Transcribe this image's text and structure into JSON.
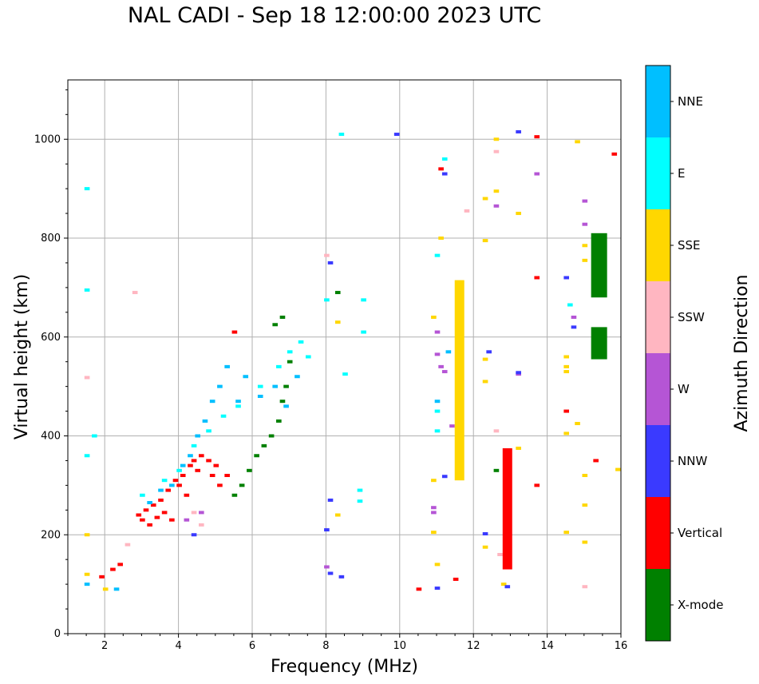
{
  "chart_data": {
    "type": "scatter",
    "title": "NAL CADI - Sep 18 12:00:00 2023 UTC",
    "xlabel": "Frequency (MHz)",
    "ylabel": "Virtual height (km)",
    "xlim": [
      1,
      16
    ],
    "ylim": [
      0,
      1120
    ],
    "xticks": [
      2,
      4,
      6,
      8,
      10,
      12,
      14,
      16
    ],
    "yticks": [
      0,
      200,
      400,
      600,
      800,
      1000
    ],
    "grid": true,
    "colorbar": {
      "label": "Azimuth Direction",
      "categories": [
        {
          "name": "X-mode",
          "color": "#008000"
        },
        {
          "name": "Vertical",
          "color": "#ff0000"
        },
        {
          "name": "NNW",
          "color": "#3a3aff"
        },
        {
          "name": "W",
          "color": "#b555d5"
        },
        {
          "name": "SSW",
          "color": "#ffb6c1"
        },
        {
          "name": "SSE",
          "color": "#ffd700"
        },
        {
          "name": "E",
          "color": "#00ffff"
        },
        {
          "name": "NNE",
          "color": "#00bfff"
        }
      ]
    },
    "series": [
      {
        "name": "Vertical",
        "points": [
          [
            2.9,
            240
          ],
          [
            3.0,
            230
          ],
          [
            3.1,
            250
          ],
          [
            3.2,
            220
          ],
          [
            3.3,
            260
          ],
          [
            3.4,
            235
          ],
          [
            3.5,
            270
          ],
          [
            3.6,
            245
          ],
          [
            3.7,
            290
          ],
          [
            3.8,
            230
          ],
          [
            3.9,
            310
          ],
          [
            4.0,
            300
          ],
          [
            4.1,
            320
          ],
          [
            4.2,
            280
          ],
          [
            4.3,
            340
          ],
          [
            4.4,
            350
          ],
          [
            4.5,
            330
          ],
          [
            4.6,
            360
          ],
          [
            4.8,
            350
          ],
          [
            4.9,
            320
          ],
          [
            5.0,
            340
          ],
          [
            5.1,
            300
          ],
          [
            5.3,
            320
          ],
          [
            5.5,
            610
          ],
          [
            10.5,
            90
          ],
          [
            11.5,
            110
          ],
          [
            13.7,
            1005
          ],
          [
            13.7,
            720
          ],
          [
            13.7,
            300
          ],
          [
            14.5,
            450
          ],
          [
            15.3,
            350
          ],
          [
            15.8,
            970
          ],
          [
            11.1,
            940
          ],
          [
            1.9,
            115
          ],
          [
            2.2,
            130
          ],
          [
            2.4,
            140
          ]
        ]
      },
      {
        "name": "NNE",
        "points": [
          [
            2.3,
            90
          ],
          [
            3.2,
            265
          ],
          [
            3.5,
            290
          ],
          [
            3.8,
            300
          ],
          [
            4.1,
            340
          ],
          [
            4.3,
            360
          ],
          [
            4.5,
            400
          ],
          [
            4.7,
            430
          ],
          [
            4.9,
            470
          ],
          [
            5.1,
            500
          ],
          [
            5.3,
            540
          ],
          [
            5.6,
            470
          ],
          [
            5.8,
            520
          ],
          [
            6.2,
            480
          ],
          [
            6.6,
            500
          ],
          [
            6.9,
            460
          ],
          [
            7.2,
            520
          ],
          [
            11.3,
            570
          ],
          [
            11.0,
            470
          ],
          [
            1.5,
            100
          ]
        ]
      },
      {
        "name": "E",
        "points": [
          [
            1.5,
            900
          ],
          [
            1.5,
            695
          ],
          [
            1.5,
            360
          ],
          [
            1.7,
            400
          ],
          [
            3.0,
            280
          ],
          [
            3.6,
            310
          ],
          [
            4.0,
            330
          ],
          [
            4.4,
            380
          ],
          [
            4.8,
            410
          ],
          [
            5.2,
            440
          ],
          [
            5.6,
            460
          ],
          [
            6.2,
            500
          ],
          [
            6.7,
            540
          ],
          [
            7.0,
            570
          ],
          [
            7.3,
            590
          ],
          [
            7.5,
            560
          ],
          [
            8.4,
            1010
          ],
          [
            8.5,
            525
          ],
          [
            8.0,
            675
          ],
          [
            9.0,
            675
          ],
          [
            9.0,
            610
          ],
          [
            8.9,
            290
          ],
          [
            8.9,
            268
          ],
          [
            11.0,
            765
          ],
          [
            11.2,
            960
          ],
          [
            11.0,
            410
          ],
          [
            11.0,
            450
          ],
          [
            14.6,
            665
          ]
        ]
      },
      {
        "name": "X-mode",
        "points": [
          [
            5.5,
            280
          ],
          [
            5.7,
            300
          ],
          [
            5.9,
            330
          ],
          [
            6.1,
            360
          ],
          [
            6.3,
            380
          ],
          [
            6.5,
            400
          ],
          [
            6.7,
            430
          ],
          [
            6.8,
            470
          ],
          [
            6.9,
            500
          ],
          [
            7.0,
            550
          ],
          [
            6.6,
            625
          ],
          [
            6.8,
            640
          ],
          [
            8.3,
            690
          ],
          [
            12.6,
            330
          ]
        ]
      },
      {
        "name": "SSE",
        "points": [
          [
            1.5,
            120
          ],
          [
            1.5,
            200
          ],
          [
            2.0,
            90
          ],
          [
            8.3,
            630
          ],
          [
            8.3,
            240
          ],
          [
            10.9,
            640
          ],
          [
            10.9,
            310
          ],
          [
            10.9,
            205
          ],
          [
            11.0,
            140
          ],
          [
            11.1,
            800
          ],
          [
            12.3,
            880
          ],
          [
            12.3,
            795
          ],
          [
            12.3,
            555
          ],
          [
            12.3,
            510
          ],
          [
            12.3,
            175
          ],
          [
            12.6,
            1000
          ],
          [
            12.6,
            895
          ],
          [
            12.8,
            100
          ],
          [
            13.2,
            375
          ],
          [
            13.2,
            850
          ],
          [
            14.5,
            560
          ],
          [
            14.5,
            540
          ],
          [
            14.5,
            530
          ],
          [
            14.5,
            405
          ],
          [
            14.5,
            205
          ],
          [
            14.8,
            425
          ],
          [
            14.8,
            995
          ],
          [
            15.0,
            785
          ],
          [
            15.0,
            755
          ],
          [
            15.0,
            320
          ],
          [
            15.0,
            260
          ],
          [
            15.0,
            185
          ],
          [
            15.9,
            332
          ]
        ]
      },
      {
        "name": "SSW",
        "points": [
          [
            1.5,
            518
          ],
          [
            2.6,
            180
          ],
          [
            2.8,
            690
          ],
          [
            4.4,
            245
          ],
          [
            8.0,
            765
          ],
          [
            11.8,
            855
          ],
          [
            12.6,
            975
          ],
          [
            12.6,
            410
          ],
          [
            12.7,
            160
          ],
          [
            15.0,
            95
          ],
          [
            4.6,
            220
          ]
        ]
      },
      {
        "name": "W",
        "points": [
          [
            4.2,
            230
          ],
          [
            4.6,
            245
          ],
          [
            8.0,
            135
          ],
          [
            11.0,
            610
          ],
          [
            11.0,
            565
          ],
          [
            11.1,
            540
          ],
          [
            11.2,
            530
          ],
          [
            11.4,
            420
          ],
          [
            12.6,
            865
          ],
          [
            13.7,
            930
          ],
          [
            15.0,
            875
          ],
          [
            15.0,
            828
          ],
          [
            14.7,
            640
          ],
          [
            13.2,
            525
          ],
          [
            10.9,
            255
          ],
          [
            10.9,
            245
          ]
        ]
      },
      {
        "name": "NNW",
        "points": [
          [
            4.4,
            200
          ],
          [
            8.1,
            750
          ],
          [
            8.1,
            270
          ],
          [
            8.1,
            122
          ],
          [
            8.4,
            115
          ],
          [
            8.0,
            210
          ],
          [
            9.9,
            1010
          ],
          [
            11.0,
            92
          ],
          [
            11.2,
            930
          ],
          [
            11.2,
            318
          ],
          [
            12.4,
            570
          ],
          [
            12.3,
            202
          ],
          [
            12.9,
            95
          ],
          [
            13.2,
            1015
          ],
          [
            13.2,
            528
          ],
          [
            14.5,
            720
          ],
          [
            14.7,
            620
          ]
        ]
      }
    ],
    "strips": [
      {
        "name": "column-11.6",
        "x": 11.6,
        "ymin": 310,
        "ymax": 715,
        "color": "#ffd700"
      },
      {
        "name": "column-12.9",
        "x": 12.9,
        "ymin": 130,
        "ymax": 375,
        "color": "#ff0000"
      },
      {
        "name": "column-15.3-upper",
        "x": 15.3,
        "ymin": 680,
        "ymax": 810,
        "color": "#008000"
      },
      {
        "name": "column-15.3-lower",
        "x": 15.3,
        "ymin": 555,
        "ymax": 620,
        "color": "#008000"
      }
    ]
  }
}
